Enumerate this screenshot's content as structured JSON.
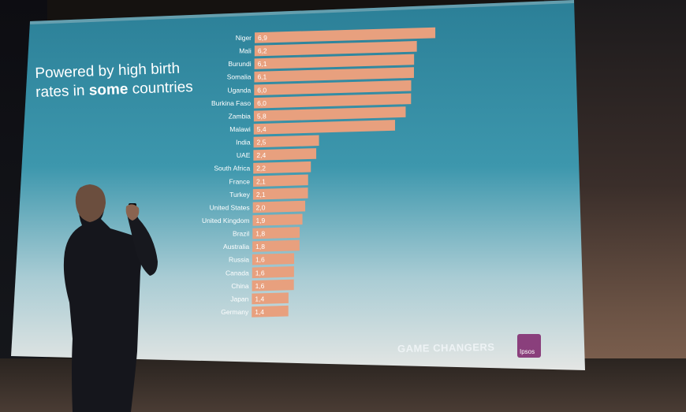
{
  "slide": {
    "title_line1": "Powered by high birth",
    "title_line2_pre": "rates in ",
    "title_line2_bold": "some",
    "title_line2_post": " countries",
    "footer_brand": "GAME CHANGERS",
    "logo_text": "Ipsos"
  },
  "colors": {
    "bar": "#e8a07e",
    "slide_top": "#2a7e96",
    "slide_bottom": "#dfe3e3",
    "text": "#ffffff"
  },
  "chart_data": {
    "type": "bar",
    "orientation": "horizontal",
    "title": "Powered by high birth rates in some countries",
    "categories": [
      "Niger",
      "Mali",
      "Burundi",
      "Somalia",
      "Uganda",
      "Burkina Faso",
      "Zambia",
      "Malawi",
      "India",
      "UAE",
      "South Africa",
      "France",
      "Turkey",
      "United States",
      "United Kingdom",
      "Brazil",
      "Australia",
      "Russia",
      "Canada",
      "China",
      "Japan",
      "Germany"
    ],
    "values": [
      6.9,
      6.2,
      6.1,
      6.1,
      6.0,
      6.0,
      5.8,
      5.4,
      2.5,
      2.4,
      2.2,
      2.1,
      2.1,
      2.0,
      1.9,
      1.8,
      1.8,
      1.6,
      1.6,
      1.6,
      1.4,
      1.4
    ],
    "value_labels": [
      "6,9",
      "6,2",
      "6,1",
      "6,1",
      "6,0",
      "6,0",
      "5,8",
      "5,4",
      "2,5",
      "2,4",
      "2,2",
      "2,1",
      "2,1",
      "2,0",
      "1,9",
      "1,8",
      "1,8",
      "1,6",
      "1,6",
      "1,6",
      "1,4",
      "1,4"
    ],
    "xlim": [
      0,
      7
    ],
    "grid": false,
    "legend": "none"
  }
}
